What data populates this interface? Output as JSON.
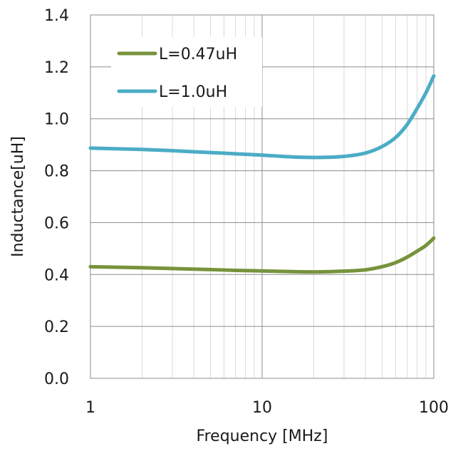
{
  "chart_data": {
    "type": "line",
    "xscale": "log",
    "xlim": [
      1,
      100
    ],
    "ylim": [
      0,
      1.4
    ],
    "xlabel": "Frequency [MHz]",
    "ylabel": "Inductance[uH]",
    "x_ticks": [
      "1",
      "10",
      "100"
    ],
    "y_ticks": [
      "0.0",
      "0.2",
      "0.4",
      "0.6",
      "0.8",
      "1.0",
      "1.2",
      "1.4"
    ],
    "grid": true,
    "legend_position": "top-left",
    "series": [
      {
        "name": "L=0.47uH",
        "color": "#77933c",
        "x": [
          1,
          2,
          3,
          5,
          7,
          10,
          15,
          20,
          25,
          30,
          40,
          50,
          60,
          70,
          80,
          90,
          100
        ],
        "y": [
          0.43,
          0.426,
          0.423,
          0.419,
          0.416,
          0.414,
          0.411,
          0.41,
          0.411,
          0.413,
          0.418,
          0.43,
          0.446,
          0.467,
          0.49,
          0.512,
          0.54
        ]
      },
      {
        "name": "L=1.0uH",
        "color": "#4bacc6",
        "x": [
          1,
          2,
          3,
          5,
          7,
          10,
          15,
          20,
          25,
          30,
          40,
          50,
          60,
          70,
          80,
          90,
          100
        ],
        "y": [
          0.887,
          0.882,
          0.877,
          0.87,
          0.865,
          0.86,
          0.853,
          0.851,
          0.852,
          0.855,
          0.868,
          0.893,
          0.928,
          0.978,
          1.04,
          1.1,
          1.165
        ]
      }
    ]
  }
}
